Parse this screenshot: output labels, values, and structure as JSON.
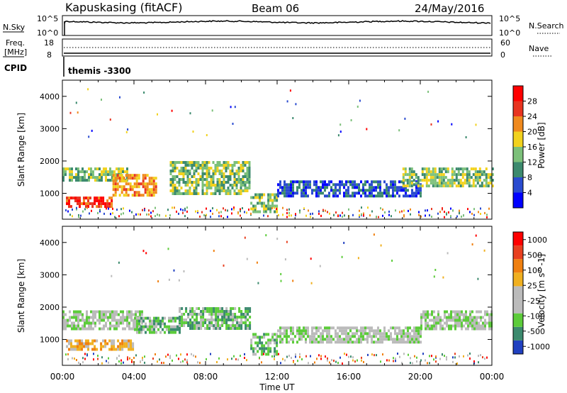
{
  "header": {
    "station": "Kapuskasing (fitACF)",
    "beam": "Beam 06",
    "date": "24/May/2016"
  },
  "top_panels": {
    "nsky_label": "N.Sky",
    "nsky_ticks": [
      "10^5",
      "10^0"
    ],
    "nsearch_label": "N.Search",
    "nsearch_ticks": [
      "10^5",
      "10^0"
    ],
    "freq_label_1": "Freq.",
    "freq_label_2": "[MHz]",
    "freq_ticks": [
      "18",
      "8"
    ],
    "nave_label": "Nave",
    "nave_ticks": [
      "60",
      "0"
    ],
    "cpid_label": "CPID",
    "cpid_text": "themis -3300"
  },
  "chart_data": [
    {
      "type": "heatmap",
      "name": "power-panel",
      "ylabel": "Slant Range [km]",
      "xlabel": "",
      "xlim": [
        0,
        24
      ],
      "ylim": [
        200,
        4500
      ],
      "yticks": [
        1000,
        2000,
        3000,
        4000
      ],
      "colorbar_label": "Power [dB]",
      "colorbar_ticks": [
        "4",
        "8",
        "12",
        "16",
        "20",
        "24",
        "28"
      ],
      "colors": [
        "#0000ff",
        "#2a4bd0",
        "#3c8a6e",
        "#7cc07a",
        "#f2d21e",
        "#f08a1e",
        "#e83420",
        "#ff0000"
      ],
      "regions": [
        {
          "t0": 0.0,
          "t1": 3.6,
          "r0": 1400,
          "r1": 1800,
          "level": 3
        },
        {
          "t0": 0.2,
          "t1": 2.8,
          "r0": 600,
          "r1": 900,
          "level": 6
        },
        {
          "t0": 2.8,
          "t1": 5.2,
          "r0": 900,
          "r1": 1600,
          "level": 5
        },
        {
          "t0": 6.0,
          "t1": 10.5,
          "r0": 1000,
          "r1": 2000,
          "level": 3
        },
        {
          "t0": 10.5,
          "t1": 12.0,
          "r0": 400,
          "r1": 1000,
          "level": 3
        },
        {
          "t0": 12.0,
          "t1": 20.0,
          "r0": 900,
          "r1": 1400,
          "level": 1
        },
        {
          "t0": 19.0,
          "t1": 24.0,
          "r0": 1200,
          "r1": 1800,
          "level": 3
        }
      ]
    },
    {
      "type": "heatmap",
      "name": "velocity-panel",
      "ylabel": "Slant Range [km]",
      "xlabel": "Time UT",
      "xlim": [
        0,
        24
      ],
      "ylim": [
        200,
        4500
      ],
      "yticks": [
        1000,
        2000,
        3000,
        4000
      ],
      "xticks": [
        "00:00",
        "04:00",
        "08:00",
        "12:00",
        "16:00",
        "20:00",
        "00:00"
      ],
      "colorbar_label": "Velocity [m s^-1]",
      "colorbar_ticks": [
        "1000",
        "500",
        "100",
        "25",
        "-25",
        "-100",
        "-500",
        "-1000"
      ],
      "colors": [
        "#2040c0",
        "#3c8a6e",
        "#5ccc3a",
        "#bbbbbb",
        "#bbbbbb",
        "#f0b020",
        "#f08010",
        "#e84020",
        "#ff0000"
      ],
      "regions": [
        {
          "t0": 0.0,
          "t1": 4.5,
          "r0": 1300,
          "r1": 1900,
          "level": 3
        },
        {
          "t0": 0.2,
          "t1": 4.0,
          "r0": 700,
          "r1": 1000,
          "level": 5
        },
        {
          "t0": 4.0,
          "t1": 6.5,
          "r0": 1200,
          "r1": 1700,
          "level": 2
        },
        {
          "t0": 6.5,
          "t1": 10.5,
          "r0": 1300,
          "r1": 2000,
          "level": 2
        },
        {
          "t0": 10.5,
          "t1": 12.0,
          "r0": 500,
          "r1": 1200,
          "level": 2
        },
        {
          "t0": 12.0,
          "t1": 20.0,
          "r0": 900,
          "r1": 1400,
          "level": 3
        },
        {
          "t0": 20.0,
          "t1": 24.0,
          "r0": 1300,
          "r1": 1900,
          "level": 3
        }
      ]
    }
  ]
}
